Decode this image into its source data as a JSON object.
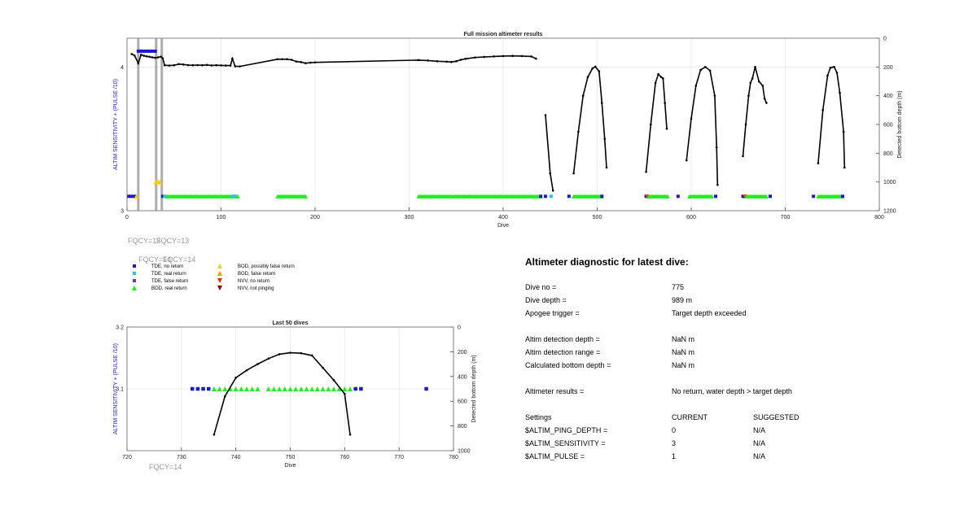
{
  "chart_data": [
    {
      "type": "scatter",
      "title": "Full mission altimeter results",
      "xlabel": "Dive",
      "ylabel_left": "ALTIM SENSITIVITY + (PULSE /10)",
      "ylabel_right": "Detected bottom depth (m)",
      "xlim": [
        0,
        800
      ],
      "ylim_left": [
        3,
        4.2
      ],
      "ylim_right": [
        0,
        1200
      ],
      "right_axis_reversed": true,
      "x_ticks": [
        "0",
        "100",
        "200",
        "300",
        "400",
        "500",
        "600",
        "700",
        "800"
      ],
      "y_left_ticks": [
        "3",
        "4"
      ],
      "y_right_ticks": [
        "0",
        "200",
        "400",
        "600",
        "800",
        "1000",
        "1200"
      ],
      "grid": true,
      "vertical_markers": [
        12,
        31,
        37
      ],
      "altim_settings_series": [
        {
          "name": "TDE, no return",
          "color": "#1a1acc",
          "points": [
            [
              2,
              3.1
            ],
            [
              5,
              3.1
            ],
            [
              8,
              3.1
            ],
            [
              12,
              4.11
            ],
            [
              15,
              4.11
            ],
            [
              18,
              4.11
            ],
            [
              21,
              4.11
            ],
            [
              24,
              4.11
            ],
            [
              27,
              4.11
            ],
            [
              30,
              4.11
            ],
            [
              38,
              3.1
            ],
            [
              440,
              3.1
            ],
            [
              445,
              3.1
            ],
            [
              470,
              3.1
            ],
            [
              505,
              3.1
            ],
            [
              552,
              3.1
            ],
            [
              586,
              3.1
            ],
            [
              626,
              3.1
            ],
            [
              655,
              3.1
            ],
            [
              684,
              3.1
            ],
            [
              730,
              3.1
            ],
            [
              761,
              3.1
            ]
          ]
        },
        {
          "name": "TDE, real return",
          "color": "#22cccc",
          "points": [
            [
              40,
              3.1
            ],
            [
              112,
              3.1
            ],
            [
              115,
              3.1
            ],
            [
              451,
              3.1
            ]
          ]
        },
        {
          "name": "BOD, possibly false return",
          "color": "#ffcc00",
          "points": [
            [
              10,
              3.1
            ],
            [
              31,
              3.2
            ],
            [
              33,
              3.2
            ],
            [
              35,
              3.2
            ]
          ]
        },
        {
          "name": "NVV, no return",
          "color": "#dd5500",
          "points": [
            [
              553,
              3.1
            ],
            [
              657,
              3.1
            ]
          ]
        }
      ],
      "bod_real_return_ranges": [
        [
          42,
          118
        ],
        [
          160,
          190
        ],
        [
          310,
          345
        ],
        [
          347,
          440
        ],
        [
          475,
          505
        ],
        [
          555,
          575
        ],
        [
          598,
          622
        ],
        [
          657,
          680
        ],
        [
          735,
          760
        ]
      ],
      "bottom_depth_segments": [
        [
          [
            5,
            110
          ],
          [
            8,
            120
          ],
          [
            12,
            175
          ],
          [
            15,
            115
          ],
          [
            18,
            122
          ],
          [
            21,
            126
          ],
          [
            24,
            129
          ],
          [
            27,
            133
          ],
          [
            30,
            136
          ],
          [
            33,
            133
          ],
          [
            36,
            128
          ],
          [
            38,
            140
          ],
          [
            40,
            188
          ],
          [
            45,
            190
          ],
          [
            50,
            188
          ],
          [
            55,
            180
          ],
          [
            60,
            183
          ],
          [
            65,
            187
          ],
          [
            70,
            188
          ],
          [
            75,
            187
          ],
          [
            80,
            188
          ],
          [
            85,
            186
          ],
          [
            90,
            189
          ],
          [
            95,
            188
          ],
          [
            100,
            189
          ],
          [
            105,
            190
          ],
          [
            110,
            190
          ],
          [
            112,
            142
          ],
          [
            115,
            195
          ],
          [
            120,
            196
          ],
          [
            160,
            146
          ],
          [
            165,
            146
          ],
          [
            170,
            146
          ],
          [
            175,
            150
          ],
          [
            180,
            162
          ],
          [
            185,
            166
          ],
          [
            190,
            174
          ],
          [
            195,
            170
          ],
          [
            200,
            168
          ],
          [
            310,
            152
          ],
          [
            320,
            155
          ],
          [
            330,
            160
          ],
          [
            340,
            163
          ],
          [
            345,
            165
          ],
          [
            350,
            160
          ],
          [
            355,
            150
          ],
          [
            360,
            143
          ],
          [
            370,
            134
          ],
          [
            380,
            130
          ],
          [
            390,
            127
          ],
          [
            400,
            124
          ],
          [
            410,
            123
          ],
          [
            420,
            124
          ],
          [
            430,
            127
          ],
          [
            435,
            142
          ]
        ],
        [
          [
            445,
            535
          ],
          [
            450,
            940
          ],
          [
            453,
            1060
          ]
        ],
        [
          [
            475,
            940
          ],
          [
            480,
            650
          ],
          [
            485,
            400
          ],
          [
            490,
            270
          ],
          [
            495,
            210
          ],
          [
            498,
            198
          ],
          [
            502,
            230
          ],
          [
            505,
            450
          ],
          [
            508,
            700
          ],
          [
            510,
            900
          ]
        ],
        [
          [
            552,
            930
          ],
          [
            557,
            600
          ],
          [
            562,
            310
          ],
          [
            565,
            250
          ],
          [
            568,
            270
          ],
          [
            570,
            280
          ],
          [
            572,
            450
          ],
          [
            574,
            630
          ]
        ],
        [
          [
            595,
            850
          ],
          [
            600,
            560
          ],
          [
            605,
            330
          ],
          [
            610,
            220
          ],
          [
            615,
            200
          ],
          [
            620,
            225
          ],
          [
            625,
            400
          ],
          [
            627,
            760
          ],
          [
            628,
            1020
          ]
        ],
        [
          [
            655,
            820
          ],
          [
            658,
            600
          ],
          [
            661,
            400
          ],
          [
            663,
            310
          ],
          [
            665,
            280
          ],
          [
            668,
            200
          ],
          [
            672,
            300
          ],
          [
            676,
            330
          ],
          [
            678,
            420
          ],
          [
            680,
            450
          ]
        ],
        [
          [
            735,
            870
          ],
          [
            740,
            500
          ],
          [
            745,
            260
          ],
          [
            748,
            205
          ],
          [
            752,
            200
          ],
          [
            755,
            240
          ],
          [
            758,
            380
          ],
          [
            762,
            650
          ],
          [
            763,
            900
          ]
        ]
      ]
    },
    {
      "type": "scatter",
      "title": "Last 50 dives",
      "xlabel": "Dive",
      "ylabel_left": "ALTIM SENSITIVITY + (PULSE /10)",
      "ylabel_right": "Detected bottom depth (m)",
      "xlim": [
        720,
        780
      ],
      "ylim_left": [
        3,
        3.2
      ],
      "ylim_right": [
        0,
        1000
      ],
      "right_axis_reversed": true,
      "x_ticks": [
        "720",
        "730",
        "740",
        "750",
        "760",
        "770",
        "780"
      ],
      "y_left_ticks": [
        "3.1",
        "3.2"
      ],
      "y_right_ticks": [
        "0",
        "200",
        "400",
        "600",
        "800",
        "1000"
      ],
      "grid": true,
      "tde_no_return_x": [
        732,
        733,
        734,
        735,
        762,
        763,
        775
      ],
      "bod_real_return_x": [
        736,
        737,
        738,
        739,
        740,
        741,
        742,
        743,
        744,
        746,
        747,
        748,
        749,
        750,
        751,
        752,
        753,
        754,
        755,
        756,
        757,
        758,
        759,
        760,
        761
      ],
      "bottom_depth": [
        [
          736,
          870
        ],
        [
          738,
          560
        ],
        [
          740,
          410
        ],
        [
          742,
          350
        ],
        [
          744,
          300
        ],
        [
          746,
          255
        ],
        [
          748,
          220
        ],
        [
          750,
          208
        ],
        [
          752,
          212
        ],
        [
          754,
          230
        ],
        [
          756,
          330
        ],
        [
          758,
          430
        ],
        [
          760,
          540
        ],
        [
          761,
          870
        ]
      ]
    }
  ],
  "legend": {
    "entries": [
      {
        "label": "TDE, no return",
        "color": "#1a1acc",
        "shape": "square"
      },
      {
        "label": "TDE, real return",
        "color": "#22cccc",
        "shape": "square"
      },
      {
        "label": "TDE, false return",
        "color": "#6633cc",
        "shape": "square"
      },
      {
        "label": "BOD, real return",
        "color": "#22ee22",
        "shape": "triangle-up"
      },
      {
        "label": "BOD, possibly false return",
        "color": "#ffcc00",
        "shape": "triangle-up"
      },
      {
        "label": "BOD, false return",
        "color": "#ff9900",
        "shape": "triangle-up"
      },
      {
        "label": "NVV, no return",
        "color": "#dd3300",
        "shape": "triangle-down"
      },
      {
        "label": "NVV, not pinging",
        "color": "#880000",
        "shape": "triangle-down"
      }
    ]
  },
  "fqcy_labels": [
    "FQCY=13",
    "FQCY=13",
    "FQCY=14",
    "FQCY=14",
    "FQCY=14"
  ],
  "diagnostic": {
    "title": "Altimeter diagnostic for latest dive:",
    "rows": [
      {
        "label": "Dive no =",
        "value": "775"
      },
      {
        "label": "Dive depth =",
        "value": "989 m"
      },
      {
        "label": "Apogee trigger =",
        "value": "Target depth exceeded"
      },
      {
        "label": "Altim detection depth =",
        "value": "NaN m"
      },
      {
        "label": "Altim detection range =",
        "value": "NaN m"
      },
      {
        "label": "Calculated bottom depth =",
        "value": "NaN m"
      },
      {
        "label": "Altimeter results =",
        "value": "No return, water depth > target depth"
      }
    ],
    "settings_header": {
      "label": "Settings",
      "current": "CURRENT",
      "suggested": "SUGGESTED"
    },
    "settings": [
      {
        "label": "$ALTIM_PING_DEPTH =",
        "current": "0",
        "suggested": "N/A"
      },
      {
        "label": "$ALTIM_SENSITIVITY =",
        "current": "3",
        "suggested": "N/A"
      },
      {
        "label": "$ALTIM_PULSE =",
        "current": "1",
        "suggested": "N/A"
      }
    ]
  },
  "colors": {
    "bod_real": "#22ee22",
    "tde_no_return": "#1a1acc",
    "left_axis_label": "#2222cc",
    "depth_line": "#000000",
    "marker_band": "#999999",
    "fqcy": "#999999"
  }
}
